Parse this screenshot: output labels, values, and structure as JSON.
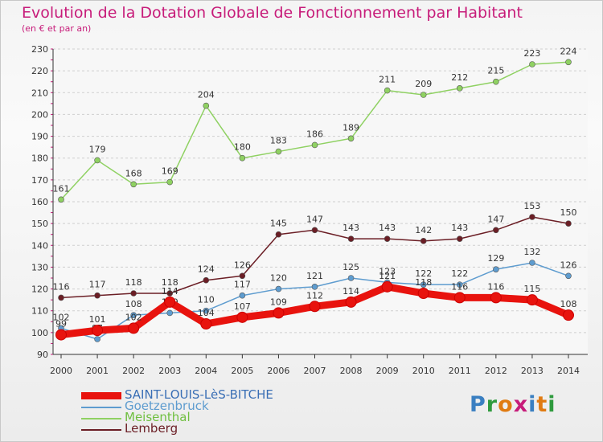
{
  "title": "Evolution de la Dotation Globale de Fonctionnement par Habitant",
  "subtitle": "(en € et par an)",
  "logo": {
    "text": "Proxiti",
    "colors": [
      "#3a7fc1",
      "#2f9b3e",
      "#e07b12",
      "#c71c7a",
      "#3a7fc1",
      "#e07b12",
      "#2f9b3e"
    ]
  },
  "chart_data": {
    "type": "line",
    "x": [
      2000,
      2001,
      2002,
      2003,
      2004,
      2005,
      2006,
      2007,
      2008,
      2009,
      2010,
      2011,
      2012,
      2013,
      2014
    ],
    "xlabel": "",
    "ylabel": "",
    "ylim": [
      90,
      230
    ],
    "yticks": [
      90,
      100,
      110,
      120,
      130,
      140,
      150,
      160,
      170,
      180,
      190,
      200,
      210,
      220,
      230
    ],
    "grid": "horizontal dashed",
    "legend": "bottom-left",
    "series": [
      {
        "name": "SAINT-LOUIS-LèS-BITCHE",
        "color": "#e8130e",
        "values": [
          99,
          101,
          102,
          114,
          104,
          107,
          109,
          112,
          114,
          121,
          118,
          116,
          116,
          115,
          108
        ]
      },
      {
        "name": "Goetzenbruck",
        "color": "#5e9ccf",
        "values": [
          102,
          97,
          108,
          109,
          110,
          117,
          120,
          121,
          125,
          123,
          122,
          122,
          129,
          132,
          126
        ]
      },
      {
        "name": "Meisenthal",
        "color": "#8fd162",
        "values": [
          161,
          179,
          168,
          169,
          204,
          180,
          183,
          186,
          189,
          211,
          209,
          212,
          215,
          223,
          224
        ]
      },
      {
        "name": "Lemberg",
        "color": "#6b1e25",
        "values": [
          116,
          117,
          118,
          118,
          124,
          126,
          145,
          147,
          143,
          143,
          142,
          143,
          147,
          153,
          150
        ]
      }
    ]
  }
}
